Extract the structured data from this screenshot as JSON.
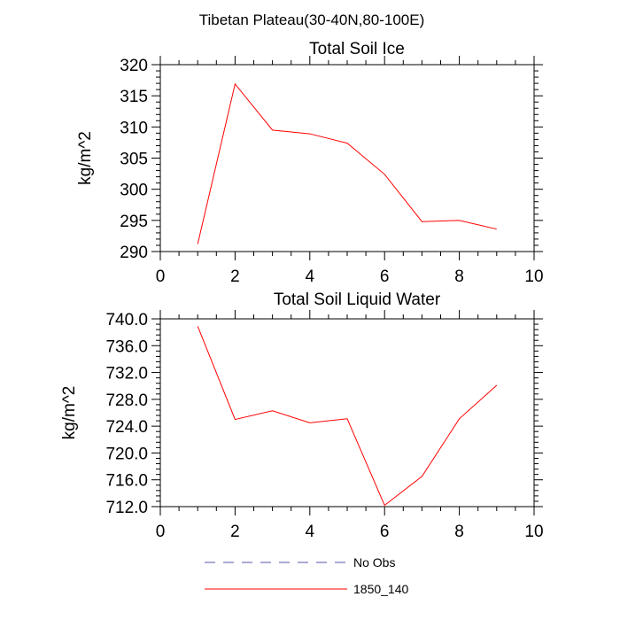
{
  "figure": {
    "suptitle": "Tibetan Plateau(30-40N,80-100E)"
  },
  "chart_data": [
    {
      "type": "line",
      "title": "Total Soil Ice",
      "xlabel": "",
      "ylabel": "kg/m^2",
      "xlim": [
        0,
        10
      ],
      "ylim": [
        290,
        320
      ],
      "x_ticks": [
        0,
        2,
        4,
        6,
        8,
        10
      ],
      "x_tick_labels": [
        "0",
        "2",
        "4",
        "6",
        "8",
        "10"
      ],
      "y_ticks": [
        290,
        295,
        300,
        305,
        310,
        315,
        320
      ],
      "y_tick_labels": [
        "290",
        "295",
        "300",
        "305",
        "310",
        "315",
        "320"
      ],
      "grid": false,
      "series": [
        {
          "name": "1850_140",
          "color": "#ff0000",
          "x": [
            1,
            2,
            3,
            4,
            5,
            6,
            7,
            8,
            9
          ],
          "values": [
            291.2,
            316.9,
            309.5,
            308.9,
            307.4,
            302.4,
            294.8,
            295.0,
            293.6
          ]
        }
      ]
    },
    {
      "type": "line",
      "title": "Total Soil Liquid Water",
      "xlabel": "",
      "ylabel": "kg/m^2",
      "xlim": [
        0,
        10
      ],
      "ylim": [
        712,
        740
      ],
      "x_ticks": [
        0,
        2,
        4,
        6,
        8,
        10
      ],
      "x_tick_labels": [
        "0",
        "2",
        "4",
        "6",
        "8",
        "10"
      ],
      "y_ticks": [
        712,
        716,
        720,
        724,
        728,
        732,
        736,
        740
      ],
      "y_tick_labels": [
        "712.0",
        "716.0",
        "720.0",
        "724.0",
        "728.0",
        "732.0",
        "736.0",
        "740.0"
      ],
      "grid": false,
      "series": [
        {
          "name": "1850_140",
          "color": "#ff0000",
          "x": [
            1,
            2,
            3,
            4,
            5,
            6,
            7,
            8,
            9
          ],
          "values": [
            738.9,
            725.0,
            726.3,
            724.5,
            725.1,
            712.2,
            716.5,
            725.1,
            730.1
          ]
        }
      ]
    }
  ],
  "legend": {
    "placement": "bottom",
    "entries": [
      {
        "label": "No Obs",
        "color": "#5555aa",
        "style": "dashed"
      },
      {
        "label": "1850_140",
        "color": "#ff0000",
        "style": "solid"
      }
    ]
  }
}
